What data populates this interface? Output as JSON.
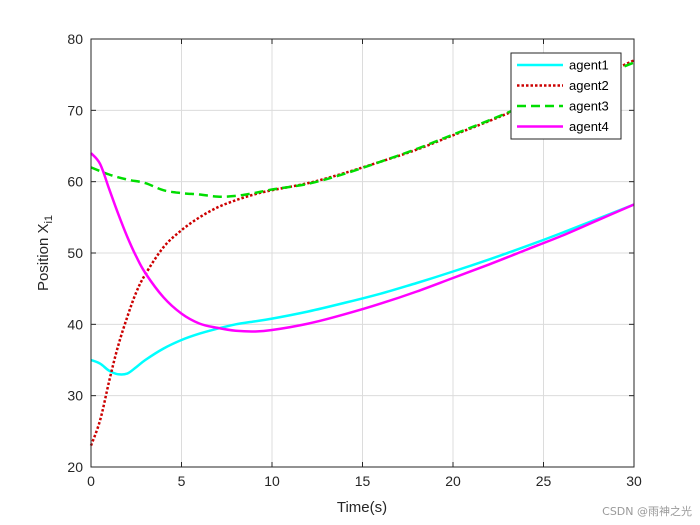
{
  "chart_data": {
    "type": "line",
    "xlabel": "Time(s)",
    "ylabel_main": "Position X",
    "ylabel_sub": "i1",
    "xlim": [
      0,
      30
    ],
    "ylim": [
      20,
      80
    ],
    "xticks": [
      0,
      5,
      10,
      15,
      20,
      25,
      30
    ],
    "yticks": [
      20,
      30,
      40,
      50,
      60,
      70,
      80
    ],
    "grid": true,
    "legend_position": "top-right",
    "series": [
      {
        "name": "agent1",
        "color": "#00ffff",
        "dash": "solid",
        "points": [
          [
            0,
            35
          ],
          [
            0.5,
            34.5
          ],
          [
            1,
            33.5
          ],
          [
            1.5,
            33
          ],
          [
            2,
            33.1
          ],
          [
            2.5,
            34
          ],
          [
            3,
            35
          ],
          [
            4,
            36.6
          ],
          [
            5,
            37.8
          ],
          [
            6,
            38.7
          ],
          [
            7,
            39.4
          ],
          [
            8,
            40
          ],
          [
            9,
            40.4
          ],
          [
            10,
            40.8
          ],
          [
            12,
            41.8
          ],
          [
            14,
            43
          ],
          [
            16,
            44.3
          ],
          [
            18,
            45.8
          ],
          [
            20,
            47.4
          ],
          [
            22,
            49.1
          ],
          [
            24,
            50.9
          ],
          [
            26,
            52.8
          ],
          [
            28,
            54.8
          ],
          [
            30,
            56.8
          ]
        ]
      },
      {
        "name": "agent2",
        "color": "#cc0000",
        "dash": "dotted",
        "points": [
          [
            0,
            23
          ],
          [
            0.5,
            26.5
          ],
          [
            1,
            32
          ],
          [
            1.5,
            37
          ],
          [
            2,
            41
          ],
          [
            2.5,
            44.5
          ],
          [
            3,
            47
          ],
          [
            4,
            50.8
          ],
          [
            5,
            53.2
          ],
          [
            6,
            55
          ],
          [
            7,
            56.4
          ],
          [
            8,
            57.4
          ],
          [
            9,
            58.2
          ],
          [
            10,
            58.8
          ],
          [
            12,
            59.8
          ],
          [
            14,
            61.2
          ],
          [
            16,
            62.8
          ],
          [
            18,
            64.5
          ],
          [
            20,
            66.5
          ],
          [
            22,
            68.5
          ],
          [
            24,
            70.6
          ],
          [
            26,
            72.6
          ],
          [
            28,
            74.7
          ],
          [
            30,
            77
          ]
        ]
      },
      {
        "name": "agent3",
        "color": "#00dd00",
        "dash": "dashed",
        "points": [
          [
            0,
            62
          ],
          [
            1,
            61
          ],
          [
            2,
            60.3
          ],
          [
            3,
            59.8
          ],
          [
            4,
            58.8
          ],
          [
            5,
            58.4
          ],
          [
            6,
            58.2
          ],
          [
            7,
            57.9
          ],
          [
            8,
            58
          ],
          [
            9,
            58.4
          ],
          [
            10,
            58.9
          ],
          [
            12,
            59.7
          ],
          [
            14,
            61.1
          ],
          [
            16,
            62.8
          ],
          [
            18,
            64.6
          ],
          [
            20,
            66.6
          ],
          [
            22,
            68.6
          ],
          [
            24,
            70.7
          ],
          [
            26,
            72.7
          ],
          [
            28,
            74.7
          ],
          [
            30,
            76.7
          ]
        ]
      },
      {
        "name": "agent4",
        "color": "#ff00ff",
        "dash": "solid",
        "points": [
          [
            0,
            64
          ],
          [
            0.5,
            62.5
          ],
          [
            1,
            59
          ],
          [
            1.5,
            55.5
          ],
          [
            2,
            52.3
          ],
          [
            2.5,
            49.5
          ],
          [
            3,
            47.2
          ],
          [
            4,
            43.8
          ],
          [
            5,
            41.5
          ],
          [
            6,
            40.1
          ],
          [
            7,
            39.5
          ],
          [
            8,
            39.1
          ],
          [
            9,
            39
          ],
          [
            10,
            39.2
          ],
          [
            12,
            40.1
          ],
          [
            14,
            41.4
          ],
          [
            16,
            42.9
          ],
          [
            18,
            44.6
          ],
          [
            20,
            46.5
          ],
          [
            22,
            48.4
          ],
          [
            24,
            50.4
          ],
          [
            26,
            52.4
          ],
          [
            28,
            54.6
          ],
          [
            30,
            56.8
          ]
        ]
      }
    ]
  },
  "watermark": "CSDN @雨神之光"
}
